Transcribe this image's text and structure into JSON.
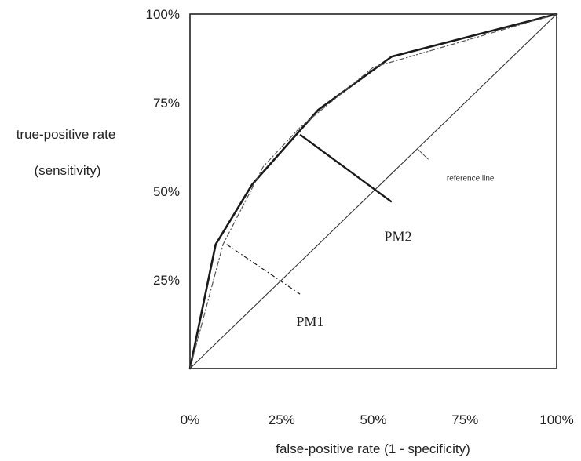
{
  "chart_data": {
    "type": "line",
    "title": "",
    "xlabel": "false-positive rate (1 - specificity)",
    "ylabel": [
      "true-positive rate",
      "(sensitivity)"
    ],
    "xlim": [
      0,
      100
    ],
    "ylim": [
      0,
      100
    ],
    "x_ticks": [
      "0%",
      "25%",
      "50%",
      "75%",
      "100%"
    ],
    "x_tick_values": [
      0,
      25,
      50,
      75,
      100
    ],
    "y_ticks": [
      "25%",
      "50%",
      "75%",
      "100%"
    ],
    "y_tick_values": [
      25,
      50,
      75,
      100
    ],
    "grid": false,
    "series": [
      {
        "style": "solid-bold",
        "color": "#1a1a1a",
        "points": [
          [
            0,
            0
          ],
          [
            7,
            35
          ],
          [
            17,
            52
          ],
          [
            35,
            73
          ],
          [
            55,
            88
          ],
          [
            100,
            100
          ]
        ]
      },
      {
        "style": "dash-dot",
        "color": "#555555",
        "points": [
          [
            0,
            0
          ],
          [
            9,
            35
          ],
          [
            20,
            57
          ],
          [
            30,
            68
          ],
          [
            50,
            85
          ],
          [
            100,
            100
          ]
        ]
      },
      {
        "name": "reference line",
        "style": "solid-thin",
        "color": "#333333",
        "points": [
          [
            0,
            0
          ],
          [
            100,
            100
          ]
        ]
      }
    ],
    "distance_segments": [
      {
        "style": "solid-bold",
        "from": [
          30,
          66
        ],
        "to": [
          55,
          47
        ]
      },
      {
        "style": "dash-dot",
        "from": [
          10,
          35
        ],
        "to": [
          30,
          21
        ]
      }
    ],
    "annotations": [
      {
        "text": "reference line",
        "x": 70,
        "y": 53,
        "kind": "small",
        "leader_from": [
          62,
          62
        ],
        "leader_to": [
          65,
          59
        ]
      },
      {
        "text": "PM2",
        "x": 53,
        "y": 36,
        "kind": "label"
      },
      {
        "text": "PM1",
        "x": 29,
        "y": 12,
        "kind": "label"
      }
    ]
  }
}
